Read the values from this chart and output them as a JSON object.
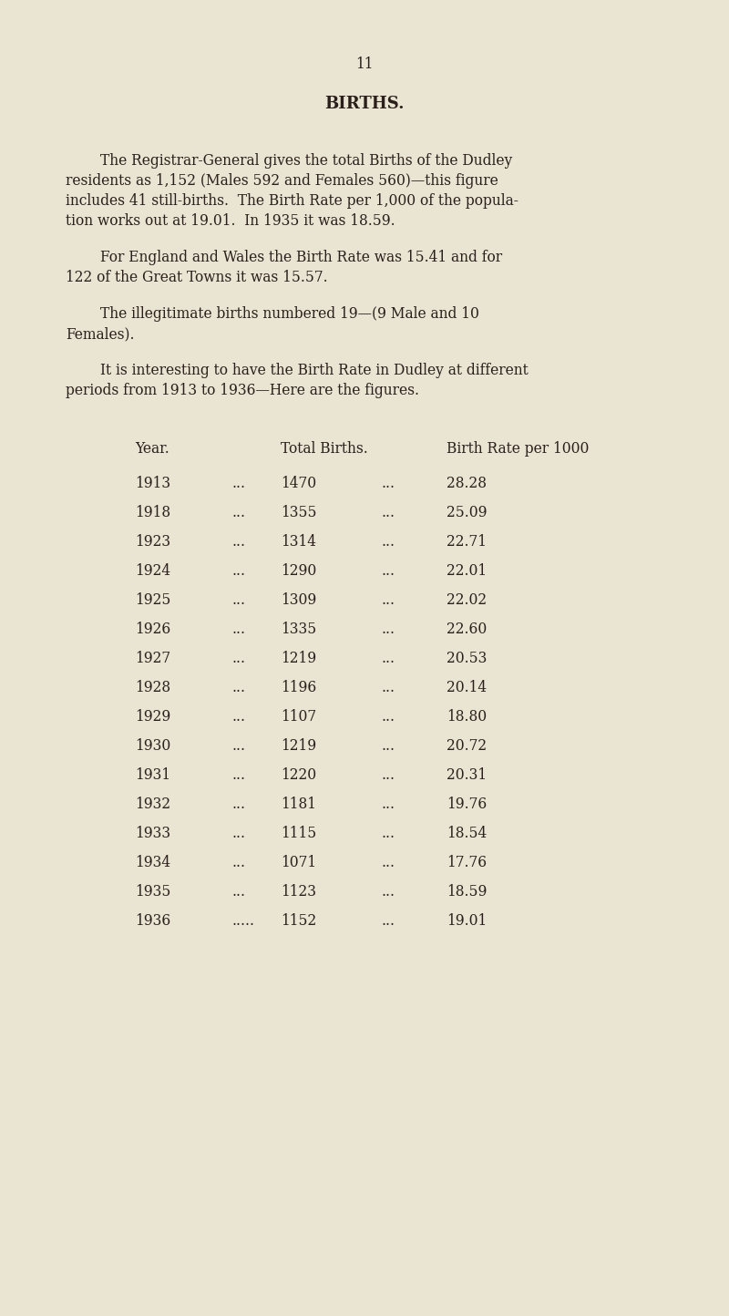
{
  "page_number": "11",
  "title": "BIRTHS.",
  "bg_color": "#EAE4D3",
  "text_color": "#2a1f1a",
  "para1_lines": [
    "The Registrar-General gives the total Births of the Dudley",
    "residents as 1,152 (Males 592 and Females 560)—this figure",
    "includes 41 still-births.  The Birth Rate per 1,000 of the popula-",
    "tion works out at 19.01.  In 1935 it was 18.59."
  ],
  "para2_lines": [
    "For England and Wales the Birth Rate was 15.41 and for",
    "122 of the Great Towns it was 15.57."
  ],
  "para3_lines": [
    "The illegitimate births numbered 19—(9 Male and 10",
    "Females)."
  ],
  "para4_lines": [
    "It is interesting to have the Birth Rate in Dudley at different",
    "periods from 1913 to 1936—Here are the figures."
  ],
  "table_header": [
    "Year.",
    "Total Births.",
    "Birth Rate per 1000"
  ],
  "table_data": [
    [
      "1913",
      "...",
      "1470",
      "...",
      "28.28"
    ],
    [
      "1918",
      "...",
      "1355",
      "...",
      "25.09"
    ],
    [
      "1923",
      "...",
      "1314",
      "...",
      "22.71"
    ],
    [
      "1924",
      "...",
      "1290",
      "...",
      "22.01"
    ],
    [
      "1925",
      "...",
      "1309",
      "...",
      "22.02"
    ],
    [
      "1926",
      "...",
      "1335",
      "...",
      "22.60"
    ],
    [
      "1927",
      "...",
      "1219",
      "...",
      "20.53"
    ],
    [
      "1928",
      "...",
      "1196",
      "...",
      "20.14"
    ],
    [
      "1929",
      "...",
      "1107",
      "...",
      "18.80"
    ],
    [
      "1930",
      "...",
      "1219",
      "...",
      "20.72"
    ],
    [
      "1931",
      "...",
      "1220",
      "...",
      "20.31"
    ],
    [
      "1932",
      "...",
      "1181",
      "...",
      "19.76"
    ],
    [
      "1933",
      "...",
      "1115",
      "...",
      "18.54"
    ],
    [
      "1934",
      "...",
      "1071",
      "...",
      "17.76"
    ],
    [
      "1935",
      "...",
      "1123",
      "...",
      "18.59"
    ],
    [
      "1936",
      ".....",
      "1152",
      "...",
      "19.01"
    ]
  ],
  "font_size_body": 11.2,
  "font_size_title": 13.0,
  "font_size_page_num": 11.2,
  "font_size_table": 11.2,
  "font_size_table_header": 11.2
}
